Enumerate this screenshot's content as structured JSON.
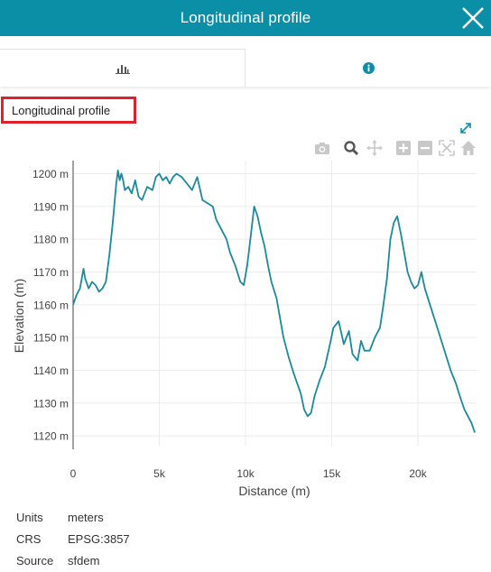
{
  "header": {
    "title": "Longitudinal profile"
  },
  "tabs": [
    {
      "icon": "bar-chart-icon",
      "active": true
    },
    {
      "icon": "info-icon",
      "active": false
    }
  ],
  "panel_title": "Longitudinal profile",
  "modebar": [
    "camera-icon",
    "zoom-icon",
    "pan-icon",
    "zoom-in-icon",
    "zoom-out-icon",
    "autoscale-icon",
    "reset-axes-icon"
  ],
  "chart_data": {
    "type": "line",
    "title": "",
    "xlabel": "Distance (m)",
    "ylabel": "Elevation (m)",
    "xlim": [
      0,
      23400
    ],
    "ylim": [
      1117,
      1204
    ],
    "x_ticks": [
      0,
      5000,
      10000,
      15000,
      20000
    ],
    "x_tick_labels": [
      "0",
      "5k",
      "10k",
      "15k",
      "20k"
    ],
    "y_ticks": [
      1120,
      1130,
      1140,
      1150,
      1160,
      1170,
      1180,
      1190,
      1200
    ],
    "y_tick_labels": [
      "1120 m",
      "1130 m",
      "1140 m",
      "1150 m",
      "1160 m",
      "1170 m",
      "1180 m",
      "1190 m",
      "1200 m"
    ],
    "grid": true,
    "color": "#1a8a9c",
    "x": [
      0,
      200,
      400,
      600,
      700,
      900,
      1100,
      1300,
      1500,
      1700,
      1900,
      2100,
      2300,
      2500,
      2600,
      2700,
      2800,
      2900,
      3000,
      3200,
      3400,
      3600,
      3800,
      4000,
      4300,
      4600,
      4800,
      5000,
      5200,
      5400,
      5600,
      5800,
      6000,
      6300,
      6600,
      6900,
      7200,
      7500,
      7800,
      8100,
      8300,
      8600,
      8900,
      9100,
      9400,
      9700,
      9900,
      10100,
      10300,
      10500,
      10700,
      10900,
      11100,
      11300,
      11500,
      11800,
      12000,
      12200,
      12500,
      12800,
      13000,
      13200,
      13400,
      13600,
      13800,
      14000,
      14300,
      14600,
      14900,
      15100,
      15400,
      15700,
      16000,
      16200,
      16500,
      16700,
      16900,
      17200,
      17500,
      17800,
      18000,
      18200,
      18400,
      18600,
      18800,
      19000,
      19200,
      19400,
      19600,
      19800,
      20000,
      20200,
      20400,
      20700,
      21000,
      21300,
      21600,
      21900,
      22200,
      22500,
      22700,
      22900,
      23100,
      23300
    ],
    "y": [
      1160,
      1163,
      1165,
      1171,
      1168,
      1165,
      1167,
      1166,
      1164,
      1165,
      1167,
      1175,
      1185,
      1197,
      1201,
      1198,
      1200,
      1198,
      1195,
      1196,
      1194,
      1198,
      1193,
      1192,
      1196,
      1195,
      1199,
      1200,
      1198,
      1199,
      1197,
      1199,
      1200,
      1199,
      1197,
      1195,
      1199,
      1192,
      1191,
      1190,
      1186,
      1183,
      1180,
      1176,
      1172,
      1167,
      1166,
      1172,
      1181,
      1190,
      1187,
      1182,
      1178,
      1172,
      1167,
      1162,
      1156,
      1150,
      1144,
      1139,
      1136,
      1133,
      1128,
      1126,
      1127,
      1132,
      1137,
      1141,
      1148,
      1153,
      1155,
      1148,
      1152,
      1145,
      1143,
      1149,
      1146,
      1146,
      1150,
      1153,
      1160,
      1168,
      1180,
      1185,
      1187,
      1182,
      1176,
      1170,
      1167,
      1165,
      1166,
      1170,
      1165,
      1160,
      1155,
      1150,
      1145,
      1140,
      1136,
      1131,
      1128,
      1126,
      1124,
      1121
    ]
  },
  "metadata": [
    {
      "key": "Units",
      "value": "meters"
    },
    {
      "key": "CRS",
      "value": "EPSG:3857"
    },
    {
      "key": "Source",
      "value": "sfdem"
    }
  ]
}
